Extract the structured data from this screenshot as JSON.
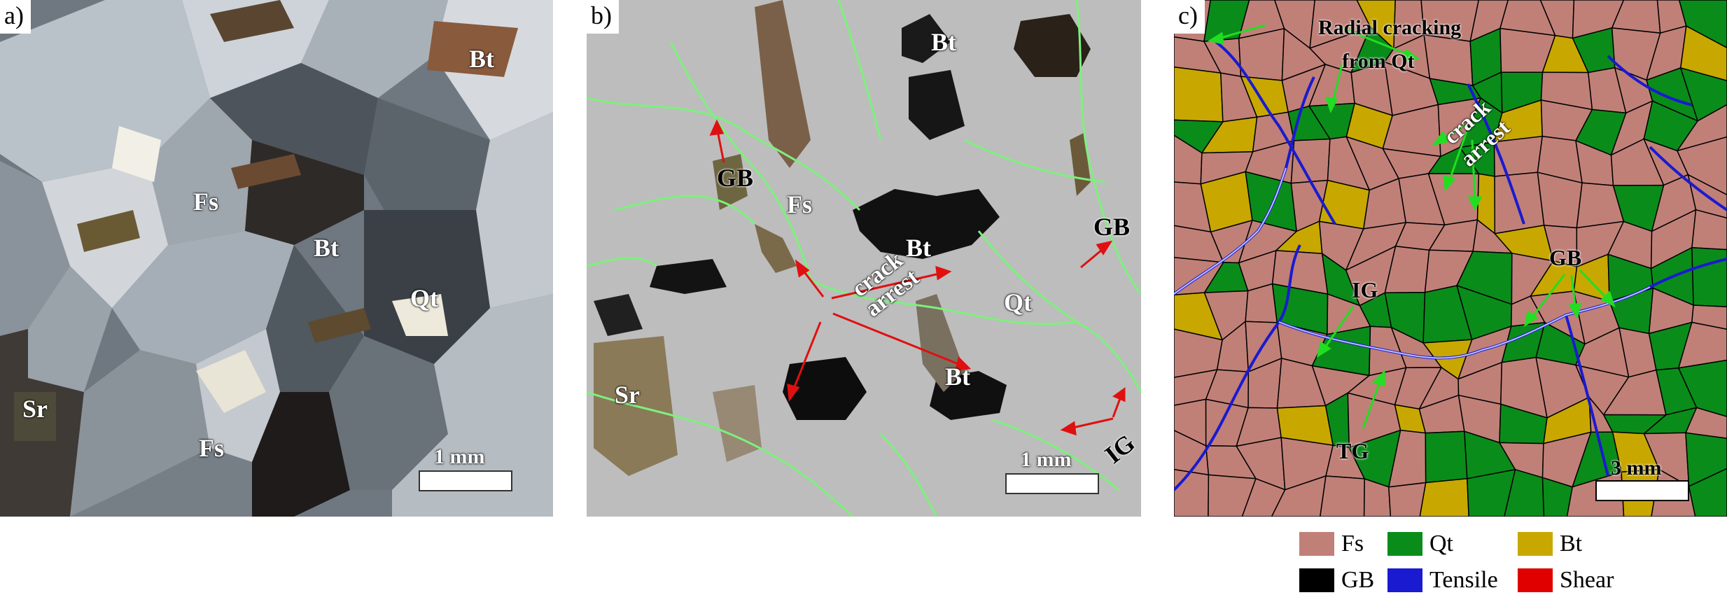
{
  "panels": [
    {
      "tag": "a)",
      "labels": [
        "Bt",
        "Fs",
        "Bt",
        "Qt",
        "Sr",
        "Fs"
      ],
      "scale": "1 mm"
    },
    {
      "tag": "b)",
      "labels": [
        "Bt",
        "GB",
        "Fs",
        "Bt",
        "GB",
        "Qt",
        "crack arrest",
        "Sr",
        "Bt",
        "IG"
      ],
      "scale": "1 mm"
    },
    {
      "tag": "c)",
      "labels": [
        "Radial cracking",
        "from Qt",
        "crack",
        "arrest",
        "GB",
        "IG",
        "TG"
      ],
      "scale": "3 mm"
    }
  ],
  "legend": [
    {
      "label": "Fs",
      "color": "#c08078"
    },
    {
      "label": "Qt",
      "color": "#0a8c1a"
    },
    {
      "label": "Bt",
      "color": "#c8a800"
    },
    {
      "label": "GB",
      "color": "#000000"
    },
    {
      "label": "Tensile",
      "color": "#1a1ad0"
    },
    {
      "label": "Shear",
      "color": "#e00000"
    }
  ],
  "colors": {
    "arrow_b": "#e01010",
    "arrow_c": "#22dd22",
    "crack_b": "#7df07d"
  }
}
